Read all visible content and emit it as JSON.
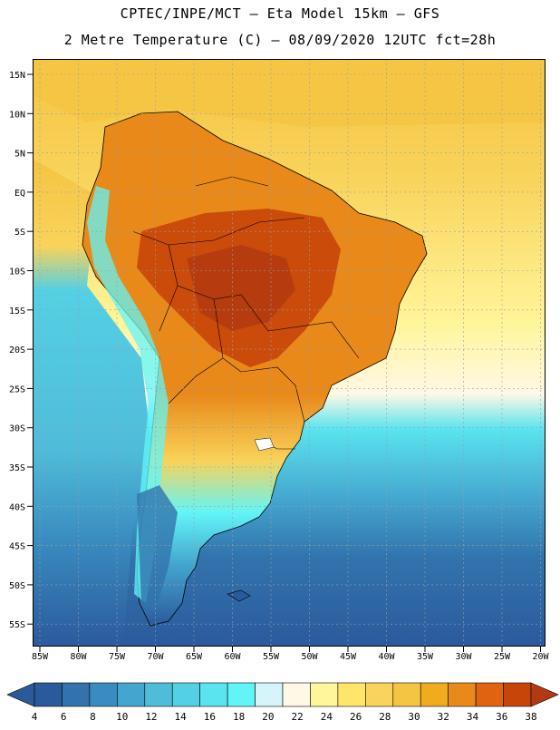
{
  "header": {
    "line1": "CPTEC/INPE/MCT –  Eta Model 15km – GFS",
    "line2": "2 Metre Temperature (C) – 08/09/2020 12UTC fct=28h"
  },
  "map": {
    "lat_labels": [
      "15N",
      "10N",
      "5N",
      "EQ",
      "5S",
      "10S",
      "15S",
      "20S",
      "25S",
      "30S",
      "35S",
      "40S",
      "45S",
      "50S",
      "55S"
    ],
    "lon_labels": [
      "85W",
      "80W",
      "75W",
      "70W",
      "65W",
      "60W",
      "55W",
      "50W",
      "45W",
      "40W",
      "35W",
      "30W",
      "25W",
      "20W"
    ]
  },
  "colorbar": {
    "ticks": [
      "4",
      "6",
      "8",
      "10",
      "12",
      "14",
      "16",
      "18",
      "20",
      "22",
      "24",
      "26",
      "28",
      "30",
      "32",
      "34",
      "36",
      "38"
    ],
    "colors": [
      "#2b5a9c",
      "#3273ad",
      "#3a8cc0",
      "#44a6cf",
      "#4fbcd9",
      "#54d0e4",
      "#5ae4ef",
      "#62f5f8",
      "#d6f5fb",
      "#fff8e6",
      "#fff59a",
      "#ffe56a",
      "#f9d35a",
      "#f4c443",
      "#f0ab1e",
      "#e8891a",
      "#e06312",
      "#c8450a",
      "#b33a10"
    ]
  }
}
